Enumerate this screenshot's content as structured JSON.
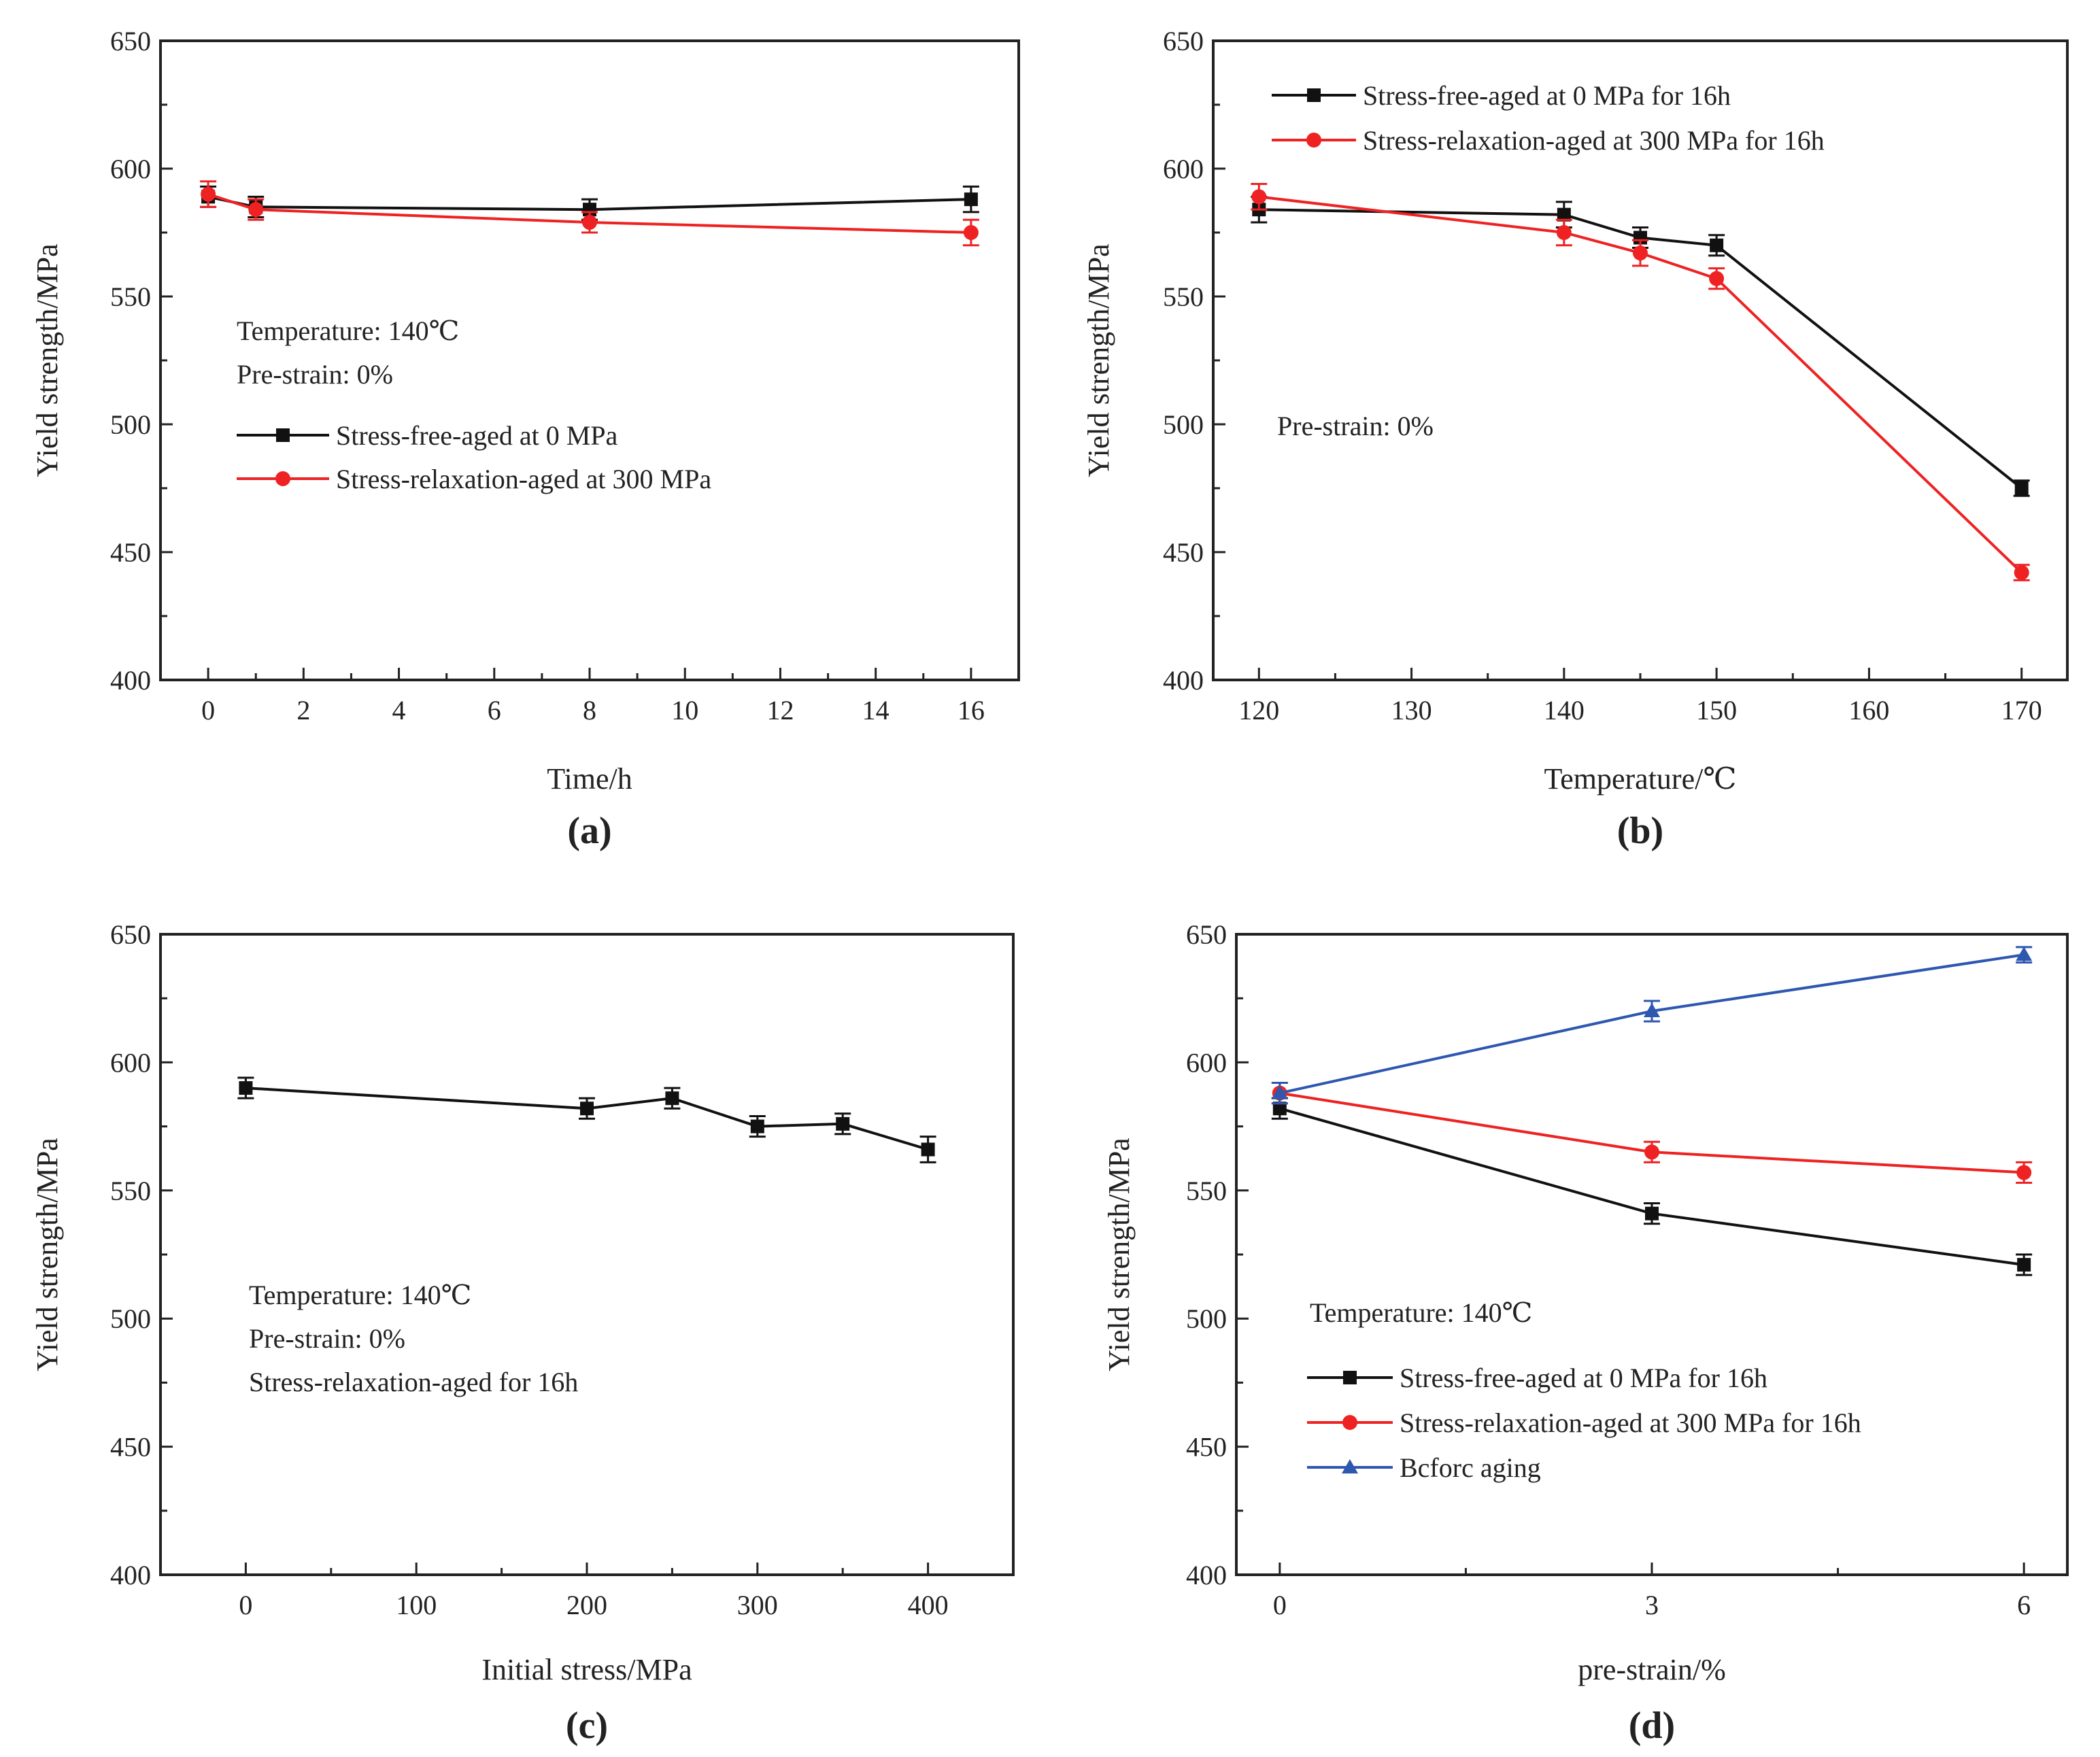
{
  "figure": {
    "panel_count": 4
  },
  "colors": {
    "black_series": "#111111",
    "red_series": "#ee2222",
    "blue_series": "#2e57b0",
    "axis": "#222222"
  },
  "chart_data": [
    {
      "id": "a",
      "type": "line",
      "panel_label": "(a)",
      "xlabel": "Time/h",
      "ylabel": "Yield strength/MPa",
      "xlim": [
        -1,
        17
      ],
      "ylim": [
        400,
        650
      ],
      "xticks": [
        0,
        2,
        4,
        6,
        8,
        10,
        12,
        14,
        16
      ],
      "yticks": [
        400,
        450,
        500,
        550,
        600,
        650
      ],
      "annotations": [
        "Temperature: 140℃",
        "Pre-strain: 0%"
      ],
      "legend_position": "center-left",
      "series": [
        {
          "name": "Stress-free-aged at 0 MPa",
          "color": "#111111",
          "marker": "square",
          "x": [
            0,
            1,
            8,
            16
          ],
          "y": [
            589,
            585,
            584,
            588
          ],
          "err": [
            4,
            4,
            4,
            5
          ]
        },
        {
          "name": "Stress-relaxation-aged at 300 MPa",
          "color": "#ee2222",
          "marker": "circle",
          "x": [
            0,
            1,
            8,
            16
          ],
          "y": [
            590,
            584,
            579,
            575
          ],
          "err": [
            5,
            4,
            4,
            5
          ]
        }
      ]
    },
    {
      "id": "b",
      "type": "line",
      "panel_label": "(b)",
      "xlabel": "Temperature/℃",
      "ylabel": "Yield strength/MPa",
      "xlim": [
        117,
        173
      ],
      "ylim": [
        400,
        650
      ],
      "xticks": [
        120,
        130,
        140,
        150,
        160,
        170
      ],
      "yticks": [
        400,
        450,
        500,
        550,
        600,
        650
      ],
      "annotations": [
        "Pre-strain: 0%"
      ],
      "legend_position": "top-left",
      "series": [
        {
          "name": "Stress-free-aged at 0 MPa  for 16h",
          "color": "#111111",
          "marker": "square",
          "x": [
            120,
            140,
            145,
            150,
            170
          ],
          "y": [
            584,
            582,
            573,
            570,
            475
          ],
          "err": [
            5,
            5,
            4,
            4,
            3
          ]
        },
        {
          "name": "Stress-relaxation-aged at 300 MPa  for 16h",
          "color": "#ee2222",
          "marker": "circle",
          "x": [
            120,
            140,
            145,
            150,
            170
          ],
          "y": [
            589,
            575,
            567,
            557,
            442
          ],
          "err": [
            5,
            5,
            5,
            4,
            3
          ]
        }
      ]
    },
    {
      "id": "c",
      "type": "line",
      "panel_label": "(c)",
      "xlabel": "Initial stress/MPa",
      "ylabel": "Yield strength/MPa",
      "xlim": [
        -50,
        450
      ],
      "ylim": [
        400,
        650
      ],
      "xticks": [
        0,
        100,
        200,
        300,
        400
      ],
      "yticks": [
        400,
        450,
        500,
        550,
        600,
        650
      ],
      "annotations": [
        "Temperature: 140℃",
        "Pre-strain: 0%",
        "Stress-relaxation-aged for 16h"
      ],
      "series": [
        {
          "name": "Stress-relaxation-aged for 16h",
          "color": "#111111",
          "marker": "square",
          "x": [
            0,
            200,
            250,
            300,
            350,
            400
          ],
          "y": [
            590,
            582,
            586,
            575,
            576,
            566
          ],
          "err": [
            4,
            4,
            4,
            4,
            4,
            5
          ]
        }
      ]
    },
    {
      "id": "d",
      "type": "line",
      "panel_label": "(d)",
      "xlabel": "pre-strain/%",
      "ylabel": "Yield strength/MPa",
      "xlim": [
        -0.35,
        6.35
      ],
      "ylim": [
        400,
        650
      ],
      "xticks": [
        0,
        3,
        6
      ],
      "yticks": [
        400,
        450,
        500,
        550,
        600,
        650
      ],
      "annotations": [
        "Temperature: 140℃"
      ],
      "legend_position": "bottom-left",
      "series": [
        {
          "name": "Stress-free-aged at 0 MPa for 16h",
          "color": "#111111",
          "marker": "square",
          "x": [
            0,
            3,
            6
          ],
          "y": [
            582,
            541,
            521
          ],
          "err": [
            4,
            4,
            4
          ]
        },
        {
          "name": "Stress-relaxation-aged at 300 MPa for 16h",
          "color": "#ee2222",
          "marker": "circle",
          "x": [
            0,
            3,
            6
          ],
          "y": [
            588,
            565,
            557
          ],
          "err": [
            4,
            4,
            4
          ]
        },
        {
          "name": "Bcforc aging",
          "color": "#2e57b0",
          "marker": "triangle",
          "x": [
            0,
            3,
            6
          ],
          "y": [
            588,
            620,
            642
          ],
          "err": [
            4,
            4,
            3
          ]
        }
      ]
    }
  ]
}
